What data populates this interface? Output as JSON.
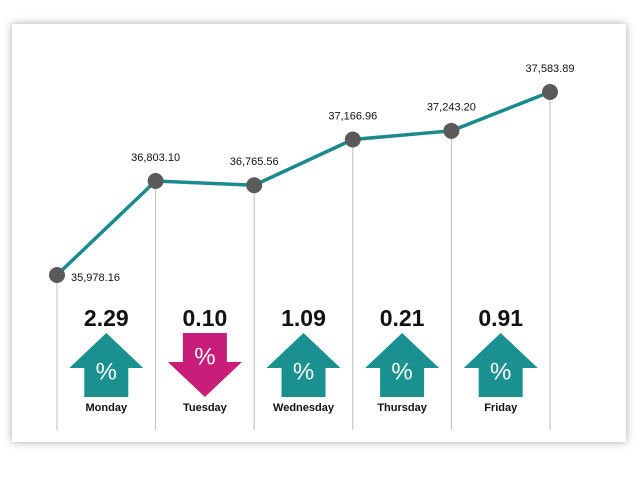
{
  "chart_data": {
    "type": "line",
    "categories": [
      null,
      null,
      null,
      null,
      null,
      null
    ],
    "values": [
      35978.16,
      36803.1,
      36765.56,
      37166.96,
      37243.2,
      37583.89
    ],
    "value_labels": [
      "35,978.16",
      "36,803.10",
      "36,765.56",
      "37,166.96",
      "37,243.20",
      "37,583.89"
    ],
    "color": "#1a8a8c",
    "marker_color": "#5a5a5a",
    "days": [
      "Monday",
      "Tuesday",
      "Wednesday",
      "Thursday",
      "Friday"
    ],
    "changes": [
      2.29,
      0.1,
      1.09,
      0.21,
      0.91
    ],
    "change_labels": [
      "2.29",
      "0.10",
      "1.09",
      "0.21",
      "0.91"
    ],
    "directions": [
      "up",
      "down",
      "up",
      "up",
      "up"
    ],
    "up_color": "#1a9090",
    "down_color": "#c81e7a",
    "percent_symbol": "%"
  }
}
